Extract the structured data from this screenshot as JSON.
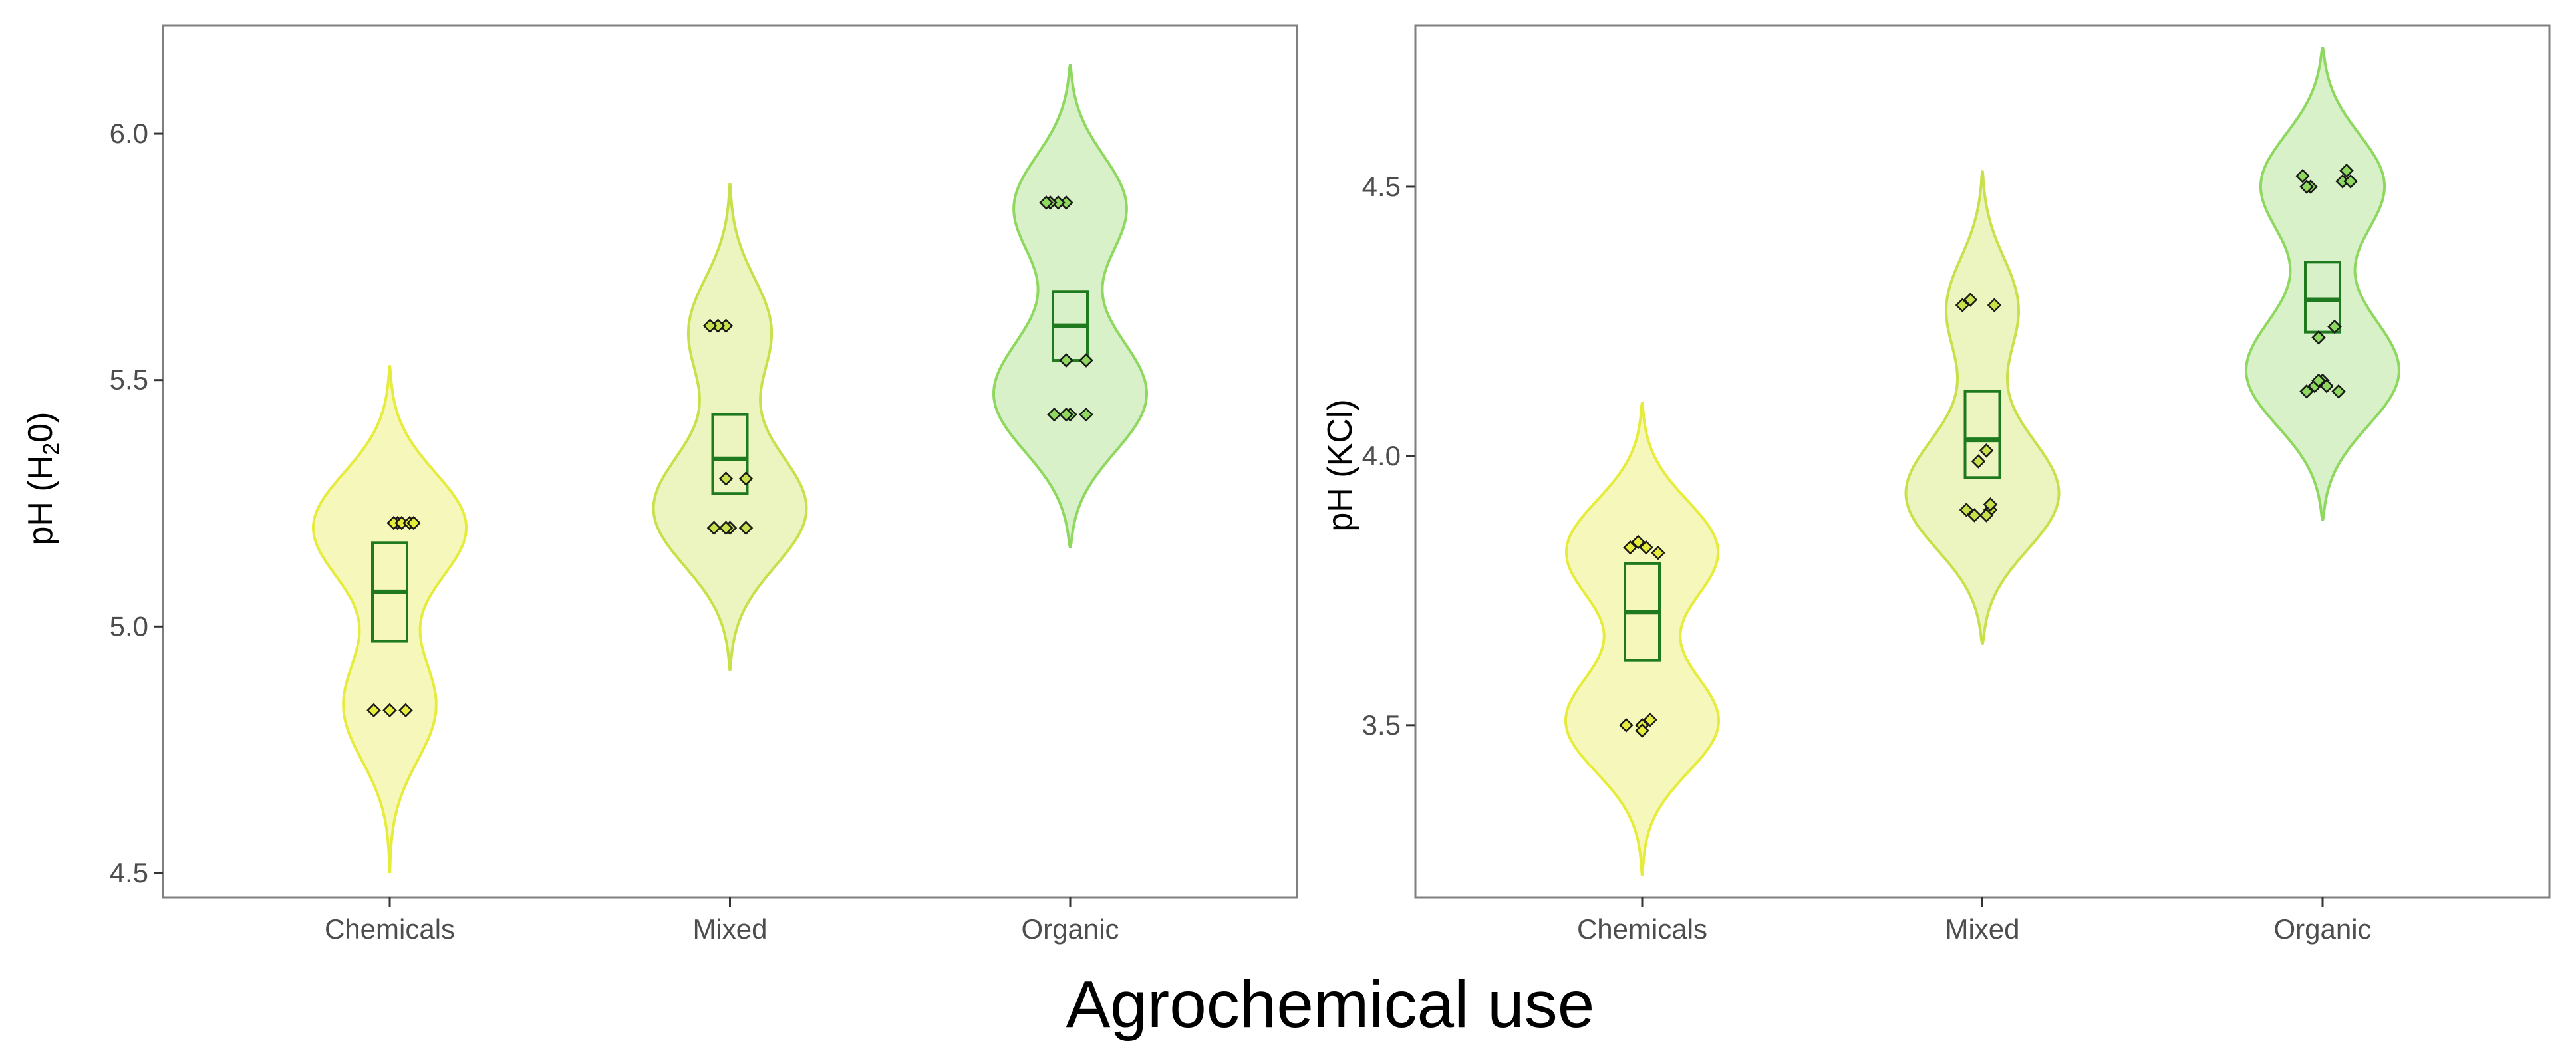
{
  "figure": {
    "xlabel": "Agrochemical use"
  },
  "colors": {
    "Chemicals": "#e6ec3c",
    "Mixed": "#c8e04a",
    "Organic": "#8fd860",
    "box": "#1f7a1f",
    "frame": "#7f7f7f"
  },
  "chart_data": [
    {
      "type": "violin",
      "ylabel": "pH (H₂O)",
      "ylabel_main": "pH (H",
      "ylabel_sub": "2",
      "ylabel_end": "0)",
      "ylim": [
        4.45,
        6.22
      ],
      "yticks": [
        4.5,
        5.0,
        5.5,
        6.0
      ],
      "ytick_labels": [
        "4.5",
        "5.0",
        "5.5",
        "6.0"
      ],
      "categories": [
        "Chemicals",
        "Mixed",
        "Organic"
      ],
      "grid": false,
      "groups": [
        {
          "name": "Chemicals",
          "min": 4.5,
          "max": 5.53,
          "mean": 5.07,
          "se_low": 4.97,
          "se_high": 5.17,
          "points": [
            4.83,
            4.83,
            4.83,
            5.21,
            5.21,
            5.21,
            5.21,
            5.21
          ]
        },
        {
          "name": "Mixed",
          "min": 4.91,
          "max": 5.9,
          "mean": 5.34,
          "se_low": 5.27,
          "se_high": 5.43,
          "points": [
            5.2,
            5.2,
            5.2,
            5.2,
            5.3,
            5.3,
            5.61,
            5.61,
            5.61
          ]
        },
        {
          "name": "Organic",
          "min": 5.16,
          "max": 6.14,
          "mean": 5.61,
          "se_low": 5.54,
          "se_high": 5.68,
          "points": [
            5.43,
            5.43,
            5.43,
            5.43,
            5.54,
            5.54,
            5.86,
            5.86,
            5.86,
            5.86
          ]
        }
      ]
    },
    {
      "type": "violin",
      "ylabel": "pH (KCl)",
      "ylim": [
        3.18,
        4.8
      ],
      "yticks": [
        3.5,
        4.0,
        4.5
      ],
      "ytick_labels": [
        "3.5",
        "4.0",
        "4.5"
      ],
      "categories": [
        "Chemicals",
        "Mixed",
        "Organic"
      ],
      "grid": false,
      "groups": [
        {
          "name": "Chemicals",
          "min": 3.22,
          "max": 4.1,
          "mean": 3.71,
          "se_low": 3.62,
          "se_high": 3.8,
          "points": [
            3.5,
            3.5,
            3.49,
            3.51,
            3.82,
            3.83,
            3.84,
            3.83
          ]
        },
        {
          "name": "Mixed",
          "min": 3.65,
          "max": 4.53,
          "mean": 4.03,
          "se_low": 3.96,
          "se_high": 4.12,
          "points": [
            3.9,
            3.89,
            3.9,
            3.91,
            3.89,
            4.01,
            3.99,
            4.28,
            4.29,
            4.28
          ]
        },
        {
          "name": "Organic",
          "min": 3.88,
          "max": 4.76,
          "mean": 4.29,
          "se_low": 4.23,
          "se_high": 4.36,
          "points": [
            4.12,
            4.13,
            4.14,
            4.12,
            4.13,
            4.14,
            4.22,
            4.24,
            4.5,
            4.51,
            4.52,
            4.53,
            4.51,
            4.5
          ]
        }
      ]
    }
  ]
}
